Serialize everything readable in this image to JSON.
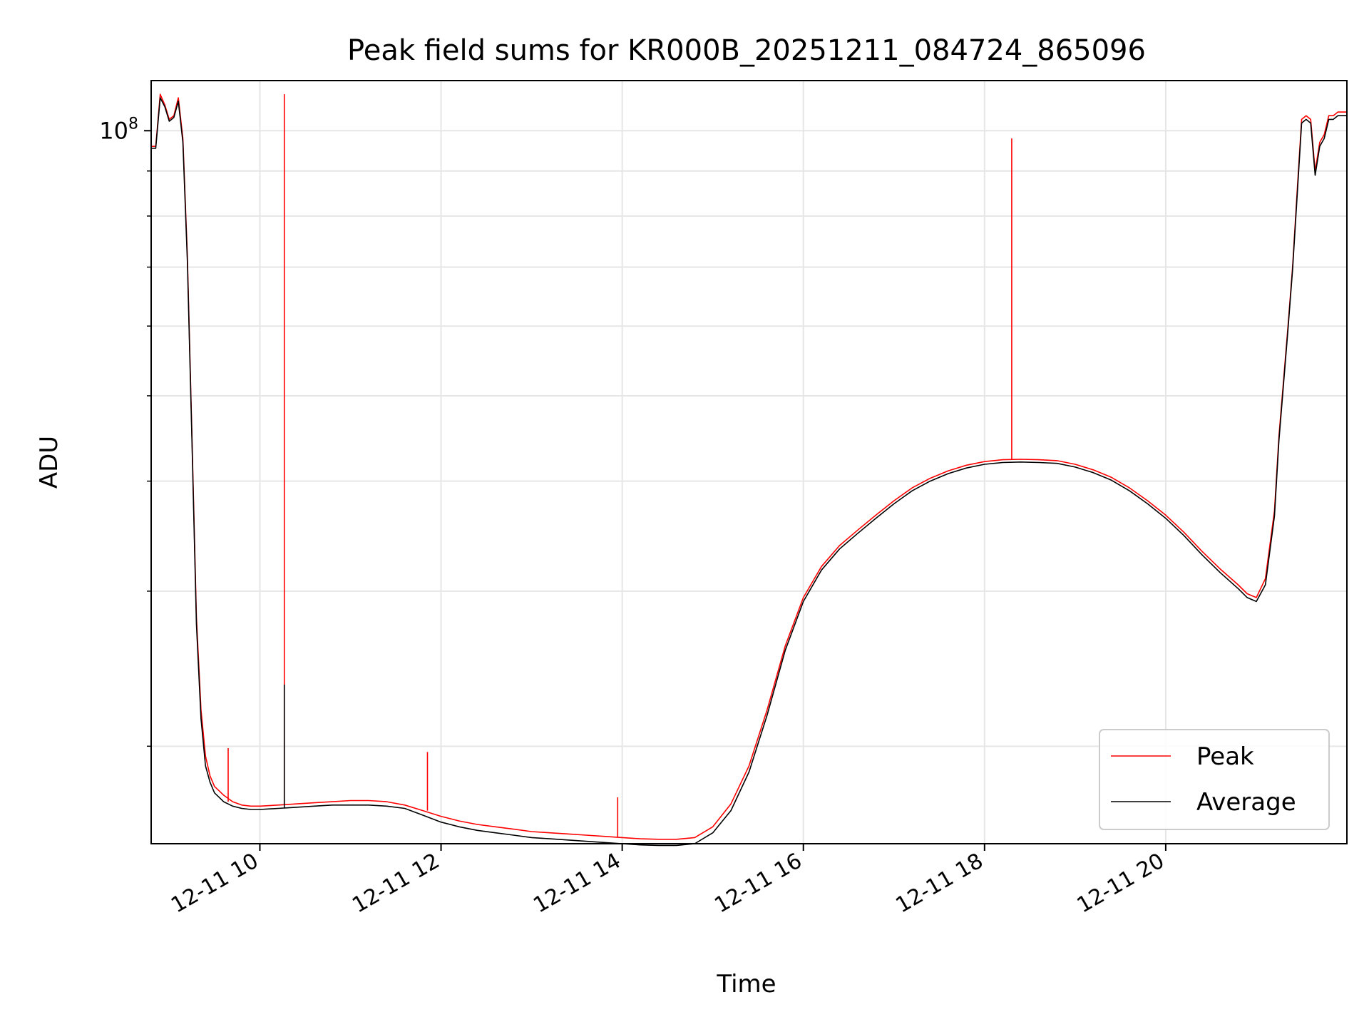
{
  "chart_data": {
    "type": "line",
    "title": "Peak field sums for KR000B_20251211_084724_865096",
    "xlabel": "Time",
    "ylabel": "ADU",
    "y_scale": "log",
    "ylim": [
      15500000,
      114000000
    ],
    "xlim": [
      8.8,
      22.0
    ],
    "x_units": "hour of day on 2025-12-11",
    "grid": true,
    "legend_location": "lower right",
    "x_ticks": [
      {
        "value": 10,
        "label": "12-11 10"
      },
      {
        "value": 12,
        "label": "12-11 12"
      },
      {
        "value": 14,
        "label": "12-11 14"
      },
      {
        "value": 16,
        "label": "12-11 16"
      },
      {
        "value": 18,
        "label": "12-11 18"
      },
      {
        "value": 20,
        "label": "12-11 20"
      }
    ],
    "y_major_tick": {
      "value": 100000000,
      "label_base": "10",
      "label_exp": "8"
    },
    "y_minor_ticks": [
      20000000,
      30000000,
      40000000,
      50000000,
      60000000,
      70000000,
      80000000,
      90000000
    ],
    "series": [
      {
        "name": "Peak",
        "color": "#ff0000",
        "x": [
          8.8,
          8.85,
          8.9,
          8.95,
          9.0,
          9.05,
          9.1,
          9.15,
          9.2,
          9.25,
          9.3,
          9.35,
          9.4,
          9.45,
          9.5,
          9.55,
          9.6,
          9.7,
          9.8,
          9.9,
          10.0,
          10.2,
          10.4,
          10.6,
          10.8,
          11.0,
          11.2,
          11.4,
          11.6,
          11.8,
          12.0,
          12.2,
          12.4,
          12.6,
          12.8,
          13.0,
          13.2,
          13.4,
          13.6,
          13.8,
          14.0,
          14.2,
          14.4,
          14.6,
          14.8,
          15.0,
          15.2,
          15.4,
          15.6,
          15.8,
          16.0,
          16.2,
          16.4,
          16.6,
          16.8,
          17.0,
          17.2,
          17.4,
          17.6,
          17.8,
          18.0,
          18.2,
          18.4,
          18.6,
          18.8,
          19.0,
          19.2,
          19.4,
          19.6,
          19.8,
          20.0,
          20.2,
          20.4,
          20.6,
          20.8,
          20.9,
          21.0,
          21.1,
          21.2,
          21.25,
          21.3,
          21.35,
          21.4,
          21.45,
          21.5,
          21.55,
          21.6,
          21.65,
          21.7,
          21.75,
          21.8,
          21.85,
          21.9,
          21.95,
          22.0
        ],
        "values": [
          96000000,
          96000000,
          110000000,
          107000000,
          103000000,
          104000000,
          109000000,
          98000000,
          72000000,
          45000000,
          28000000,
          22000000,
          19500000,
          18500000,
          18000000,
          17800000,
          17600000,
          17300000,
          17150000,
          17100000,
          17100000,
          17150000,
          17200000,
          17250000,
          17300000,
          17350000,
          17350000,
          17300000,
          17150000,
          16900000,
          16650000,
          16450000,
          16300000,
          16200000,
          16100000,
          16000000,
          15950000,
          15900000,
          15850000,
          15800000,
          15750000,
          15700000,
          15680000,
          15680000,
          15750000,
          16200000,
          17200000,
          19000000,
          22000000,
          26000000,
          29500000,
          32000000,
          33800000,
          35200000,
          36600000,
          38000000,
          39300000,
          40300000,
          41100000,
          41700000,
          42100000,
          42300000,
          42350000,
          42300000,
          42200000,
          41800000,
          41200000,
          40400000,
          39300000,
          38000000,
          36600000,
          35000000,
          33300000,
          31800000,
          30500000,
          29800000,
          29500000,
          31000000,
          37000000,
          45000000,
          52000000,
          60000000,
          70000000,
          85000000,
          103000000,
          104000000,
          103000000,
          90000000,
          97000000,
          99000000,
          104000000,
          104000000,
          105000000,
          105000000,
          105000000
        ]
      },
      {
        "name": "Average",
        "color": "#000000",
        "x": [
          8.8,
          8.85,
          8.9,
          8.95,
          9.0,
          9.05,
          9.1,
          9.15,
          9.2,
          9.25,
          9.3,
          9.35,
          9.4,
          9.45,
          9.5,
          9.55,
          9.6,
          9.7,
          9.8,
          9.9,
          10.0,
          10.2,
          10.4,
          10.6,
          10.8,
          11.0,
          11.2,
          11.4,
          11.6,
          11.8,
          12.0,
          12.2,
          12.4,
          12.6,
          12.8,
          13.0,
          13.2,
          13.4,
          13.6,
          13.8,
          14.0,
          14.2,
          14.4,
          14.6,
          14.8,
          15.0,
          15.2,
          15.4,
          15.6,
          15.8,
          16.0,
          16.2,
          16.4,
          16.6,
          16.8,
          17.0,
          17.2,
          17.4,
          17.6,
          17.8,
          18.0,
          18.2,
          18.4,
          18.6,
          18.8,
          19.0,
          19.2,
          19.4,
          19.6,
          19.8,
          20.0,
          20.2,
          20.4,
          20.6,
          20.8,
          20.9,
          21.0,
          21.1,
          21.2,
          21.25,
          21.3,
          21.35,
          21.4,
          21.45,
          21.5,
          21.55,
          21.6,
          21.65,
          21.7,
          21.75,
          21.8,
          21.85,
          21.9,
          21.95,
          22.0
        ],
        "values": [
          95500000,
          95500000,
          109000000,
          106500000,
          102500000,
          103500000,
          108000000,
          97000000,
          71000000,
          44500000,
          27500000,
          21500000,
          19000000,
          18200000,
          17700000,
          17500000,
          17300000,
          17100000,
          17000000,
          16950000,
          16950000,
          17000000,
          17050000,
          17100000,
          17150000,
          17150000,
          17150000,
          17100000,
          17000000,
          16700000,
          16400000,
          16200000,
          16050000,
          15950000,
          15850000,
          15750000,
          15700000,
          15650000,
          15600000,
          15550000,
          15500000,
          15450000,
          15430000,
          15430000,
          15500000,
          15950000,
          16900000,
          18700000,
          21700000,
          25700000,
          29200000,
          31700000,
          33500000,
          34900000,
          36300000,
          37700000,
          39000000,
          40000000,
          40800000,
          41400000,
          41800000,
          42000000,
          42050000,
          42000000,
          41900000,
          41500000,
          40900000,
          40100000,
          39000000,
          37700000,
          36300000,
          34700000,
          33000000,
          31500000,
          30200000,
          29500000,
          29200000,
          30500000,
          36500000,
          44500000,
          51500000,
          59500000,
          69500000,
          84000000,
          102000000,
          103000000,
          102000000,
          89000000,
          96000000,
          98000000,
          103000000,
          103000000,
          104000000,
          104000000,
          104000000
        ]
      }
    ],
    "annotations_spikes": [
      {
        "series": "Peak",
        "x": 10.27,
        "value": 110000000
      },
      {
        "series": "Average",
        "x": 10.27,
        "value": 23500000
      },
      {
        "series": "Peak",
        "x": 9.65,
        "value": 19900000
      },
      {
        "series": "Peak",
        "x": 11.85,
        "value": 19700000
      },
      {
        "series": "Peak",
        "x": 13.95,
        "value": 17500000
      },
      {
        "series": "Peak",
        "x": 18.3,
        "value": 98000000
      }
    ]
  }
}
